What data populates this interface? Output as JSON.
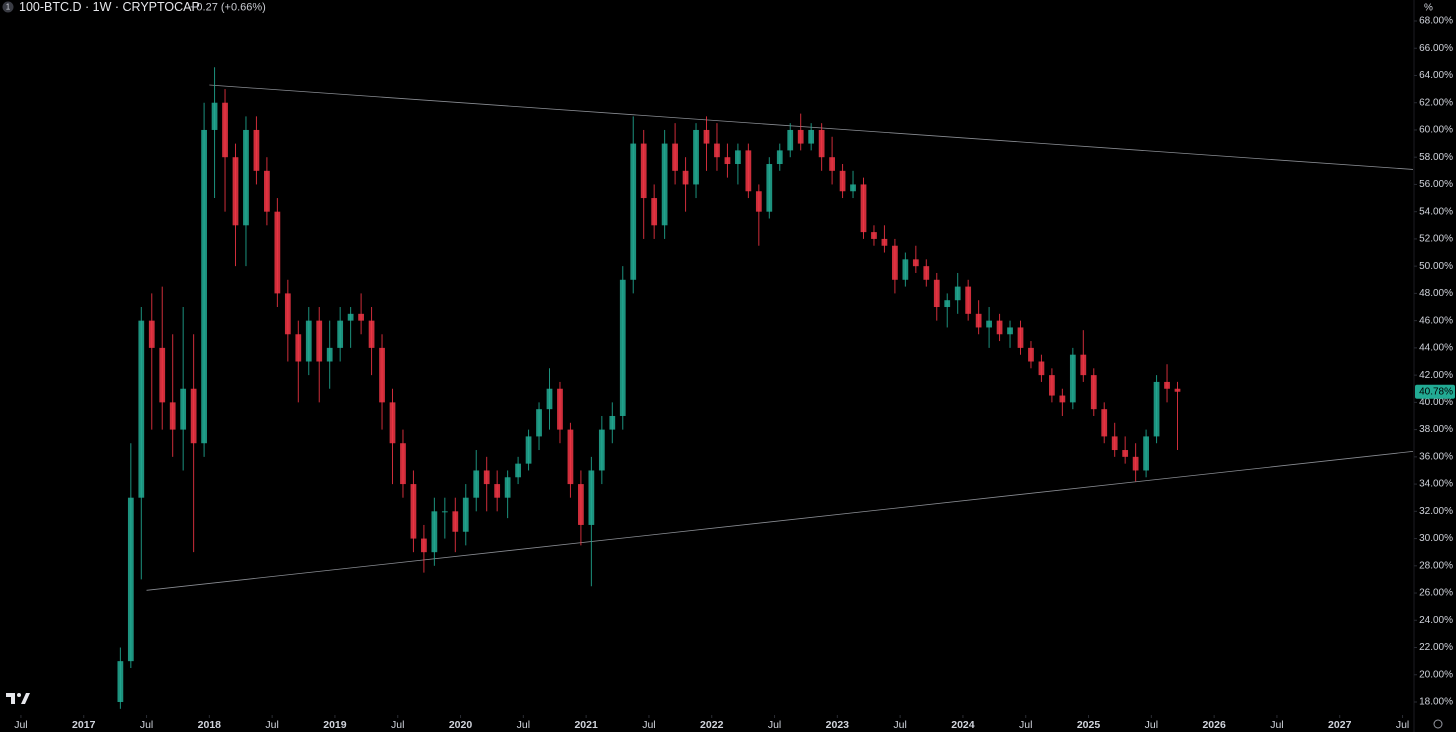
{
  "chart_data": {
    "type": "candlestick",
    "badge": "1",
    "title": "100-BTC.D · 1W · CRYPTOCAP",
    "change": "+0.27 (+0.66%)",
    "unit": "%",
    "up_color": "#22ab94",
    "down_color": "#f23645",
    "trendline_color": "#8a8d93",
    "xlim": [
      "2016-05",
      "2027-08"
    ],
    "xticks": [
      {
        "value": "2016-07",
        "label": "Jul"
      },
      {
        "value": "2017-01",
        "label": "2017"
      },
      {
        "value": "2017-07",
        "label": "Jul"
      },
      {
        "value": "2018-01",
        "label": "2018"
      },
      {
        "value": "2018-07",
        "label": "Jul"
      },
      {
        "value": "2019-01",
        "label": "2019"
      },
      {
        "value": "2019-07",
        "label": "Jul"
      },
      {
        "value": "2020-01",
        "label": "2020"
      },
      {
        "value": "2020-07",
        "label": "Jul"
      },
      {
        "value": "2021-01",
        "label": "2021"
      },
      {
        "value": "2021-07",
        "label": "Jul"
      },
      {
        "value": "2022-01",
        "label": "2022"
      },
      {
        "value": "2022-07",
        "label": "Jul"
      },
      {
        "value": "2023-01",
        "label": "2023"
      },
      {
        "value": "2023-07",
        "label": "Jul"
      },
      {
        "value": "2024-01",
        "label": "2024"
      },
      {
        "value": "2024-07",
        "label": "Jul"
      },
      {
        "value": "2025-01",
        "label": "2025"
      },
      {
        "value": "2025-07",
        "label": "Jul"
      },
      {
        "value": "2026-01",
        "label": "2026"
      },
      {
        "value": "2026-07",
        "label": "Jul"
      },
      {
        "value": "2027-01",
        "label": "2027"
      },
      {
        "value": "2027-07",
        "label": "Jul"
      }
    ],
    "ylim": [
      17,
      69
    ],
    "yticks": [
      {
        "value": 18,
        "label": "18.00%"
      },
      {
        "value": 20,
        "label": "20.00%"
      },
      {
        "value": 22,
        "label": "22.00%"
      },
      {
        "value": 24,
        "label": "24.00%"
      },
      {
        "value": 26,
        "label": "26.00%"
      },
      {
        "value": 28,
        "label": "28.00%"
      },
      {
        "value": 30,
        "label": "30.00%"
      },
      {
        "value": 32,
        "label": "32.00%"
      },
      {
        "value": 34,
        "label": "34.00%"
      },
      {
        "value": 36,
        "label": "36.00%"
      },
      {
        "value": 38,
        "label": "38.00%"
      },
      {
        "value": 40,
        "label": "40.00%"
      },
      {
        "value": 42,
        "label": "42.00%"
      },
      {
        "value": 44,
        "label": "44.00%"
      },
      {
        "value": 46,
        "label": "46.00%"
      },
      {
        "value": 48,
        "label": "48.00%"
      },
      {
        "value": 50,
        "label": "50.00%"
      },
      {
        "value": 52,
        "label": "52.00%"
      },
      {
        "value": 54,
        "label": "54.00%"
      },
      {
        "value": 56,
        "label": "56.00%"
      },
      {
        "value": 58,
        "label": "58.00%"
      },
      {
        "value": 60,
        "label": "60.00%"
      },
      {
        "value": 62,
        "label": "62.00%"
      },
      {
        "value": 64,
        "label": "64.00%"
      },
      {
        "value": 66,
        "label": "66.00%"
      },
      {
        "value": 68,
        "label": "68.00%"
      }
    ],
    "last_value": {
      "value": 40.78,
      "label": "40.78%"
    },
    "trendlines": [
      {
        "x": [
          "2018-01",
          "2027-08"
        ],
        "y": [
          63.3,
          57.1
        ]
      },
      {
        "x": [
          "2017-07",
          "2027-08"
        ],
        "y": [
          26.2,
          36.4
        ]
      }
    ],
    "x": [
      "2017-04",
      "2017-05",
      "2017-06",
      "2017-07",
      "2017-08",
      "2017-09",
      "2017-10",
      "2017-11",
      "2017-12",
      "2018-01",
      "2018-02",
      "2018-03",
      "2018-04",
      "2018-05",
      "2018-06",
      "2018-07",
      "2018-08",
      "2018-09",
      "2018-10",
      "2018-11",
      "2018-12",
      "2019-01",
      "2019-02",
      "2019-03",
      "2019-04",
      "2019-05",
      "2019-06",
      "2019-07",
      "2019-08",
      "2019-09",
      "2019-10",
      "2019-11",
      "2019-12",
      "2020-01",
      "2020-02",
      "2020-03",
      "2020-04",
      "2020-05",
      "2020-06",
      "2020-07",
      "2020-08",
      "2020-09",
      "2020-10",
      "2020-11",
      "2020-12",
      "2021-01",
      "2021-02",
      "2021-03",
      "2021-04",
      "2021-05",
      "2021-06",
      "2021-07",
      "2021-08",
      "2021-09",
      "2021-10",
      "2021-11",
      "2021-12",
      "2022-01",
      "2022-02",
      "2022-03",
      "2022-04",
      "2022-05",
      "2022-06",
      "2022-07",
      "2022-08",
      "2022-09",
      "2022-10",
      "2022-11",
      "2022-12",
      "2023-01",
      "2023-02",
      "2023-03",
      "2023-04",
      "2023-05",
      "2023-06",
      "2023-07",
      "2023-08",
      "2023-09",
      "2023-10",
      "2023-11",
      "2023-12",
      "2024-01",
      "2024-02",
      "2024-03",
      "2024-04",
      "2024-05",
      "2024-06",
      "2024-07",
      "2024-08",
      "2024-09",
      "2024-10",
      "2024-11",
      "2024-12",
      "2025-01",
      "2025-02",
      "2025-03",
      "2025-04",
      "2025-05",
      "2025-06",
      "2025-07",
      "2025-08",
      "2025-09"
    ],
    "open": [
      18,
      21,
      33,
      46,
      44,
      40,
      38,
      41,
      37,
      60,
      62,
      58,
      53,
      60,
      57,
      54,
      48,
      45,
      43,
      46,
      43,
      44,
      46,
      46.5,
      46,
      44,
      40,
      37,
      34,
      30,
      29,
      32,
      32,
      30.5,
      33,
      35,
      34,
      33,
      34.5,
      35.5,
      37.5,
      39.5,
      41,
      38,
      34,
      31,
      35,
      38,
      39,
      49,
      59,
      55,
      53,
      59,
      57,
      56,
      60,
      59,
      58,
      57.5,
      58.5,
      55.5,
      54,
      57.5,
      58.5,
      60,
      59,
      60,
      58,
      57,
      55.5,
      56,
      52.5,
      52,
      51.5,
      49,
      50.5,
      50,
      49,
      47,
      47.5,
      48.5,
      46.5,
      45.5,
      46,
      45,
      45.5,
      44,
      43,
      42,
      40.5,
      40,
      43.5,
      42,
      39.5,
      37.5,
      36.5,
      36,
      35,
      37.5,
      41.5,
      41
    ],
    "high": [
      22,
      37,
      47,
      48,
      48.5,
      45,
      47,
      45,
      62,
      64.6,
      63,
      59,
      61,
      61,
      58,
      55,
      49,
      46,
      47,
      47,
      46,
      47,
      47,
      48,
      47,
      45,
      41,
      38,
      35,
      31,
      33,
      33,
      33,
      34,
      36.5,
      36,
      35,
      35,
      36,
      38,
      40,
      42.5,
      41.5,
      38.5,
      35,
      36,
      39,
      40,
      50,
      61,
      60,
      56,
      60,
      60.5,
      58,
      60.5,
      61,
      60.5,
      59,
      59,
      59,
      56,
      58,
      59,
      60.5,
      61.2,
      60.5,
      60.5,
      59.5,
      57.5,
      57,
      56.5,
      53,
      53,
      52,
      51,
      51.5,
      50.5,
      49.5,
      48,
      49.5,
      49,
      47.5,
      47,
      46.5,
      46,
      46,
      44.5,
      43.5,
      42.5,
      41,
      44,
      45.3,
      42.5,
      40,
      38.5,
      37.5,
      37,
      38,
      42,
      42.8,
      41.5
    ],
    "low": [
      17.5,
      20.5,
      27,
      38,
      38,
      36,
      35,
      29,
      36,
      55,
      54,
      50,
      50,
      56,
      53,
      47,
      43,
      40,
      42,
      40,
      41,
      43,
      44,
      45,
      42,
      38,
      34,
      33,
      29,
      27.5,
      28,
      30,
      29,
      29.5,
      32,
      32,
      32,
      31.5,
      34,
      35,
      36.5,
      38,
      37,
      33,
      29.5,
      26.5,
      34,
      37,
      38,
      48,
      52,
      52,
      52,
      56,
      54,
      55,
      57,
      57,
      56.5,
      56,
      55,
      51.5,
      53.5,
      57,
      58,
      58.5,
      58.5,
      57,
      56,
      55,
      55,
      52,
      51.5,
      51,
      48,
      48.5,
      49.5,
      48.5,
      46,
      45.5,
      46.5,
      46,
      45,
      44,
      44.5,
      44,
      43.5,
      42.5,
      41.5,
      40,
      39,
      39.5,
      41.5,
      39,
      37,
      36,
      35.5,
      34.2,
      34.5,
      37,
      40,
      36.5
    ],
    "close": [
      21,
      33,
      46,
      44,
      40,
      38,
      41,
      37,
      60,
      62,
      58,
      53,
      60,
      57,
      54,
      48,
      45,
      43,
      46,
      43,
      44,
      46,
      46.5,
      46,
      44,
      40,
      37,
      34,
      30,
      29,
      32,
      32,
      30.5,
      33,
      35,
      34,
      33,
      34.5,
      35.5,
      37.5,
      39.5,
      41,
      38,
      34,
      31,
      35,
      38,
      39,
      49,
      59,
      55,
      53,
      59,
      57,
      56,
      60,
      59,
      58,
      57.5,
      58.5,
      55.5,
      54,
      57.5,
      58.5,
      60,
      59,
      60,
      58,
      57,
      55.5,
      56,
      52.5,
      52,
      51.5,
      49,
      50.5,
      50,
      49,
      47,
      47.5,
      48.5,
      46.5,
      45.5,
      46,
      45,
      45.5,
      44,
      43,
      42,
      40.5,
      40,
      43.5,
      42,
      39.5,
      37.5,
      36.5,
      36,
      35,
      37.5,
      41.5,
      41,
      40.78
    ]
  }
}
